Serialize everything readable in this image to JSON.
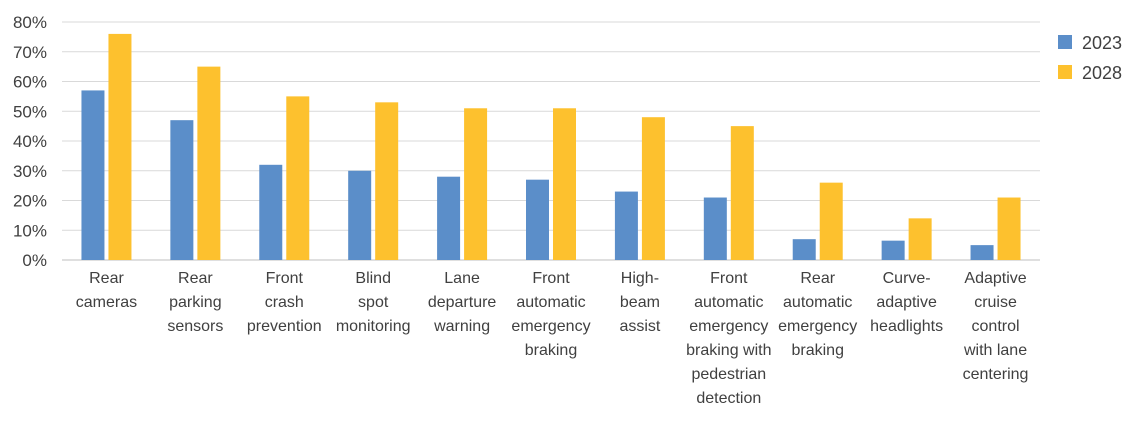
{
  "chart_data": {
    "type": "bar",
    "categories": [
      [
        "Rear",
        "cameras"
      ],
      [
        "Rear",
        "parking",
        "sensors"
      ],
      [
        "Front",
        "crash",
        "prevention"
      ],
      [
        "Blind",
        "spot",
        "monitoring"
      ],
      [
        "Lane",
        "departure",
        "warning"
      ],
      [
        "Front",
        "automatic",
        "emergency",
        "braking"
      ],
      [
        "High-",
        "beam",
        "assist"
      ],
      [
        "Front",
        "automatic",
        "emergency",
        "braking with",
        "pedestrian",
        "detection"
      ],
      [
        "Rear",
        "automatic",
        "emergency",
        "braking"
      ],
      [
        "Curve-",
        "adaptive",
        "headlights"
      ],
      [
        "Adaptive",
        "cruise",
        "control",
        "with lane",
        "centering"
      ]
    ],
    "series": [
      {
        "name": "2023",
        "color": "#5b8ec9",
        "values": [
          57,
          47,
          32,
          30,
          28,
          27,
          23,
          21,
          7,
          6.5,
          5
        ]
      },
      {
        "name": "2028",
        "color": "#fdc12e",
        "values": [
          76,
          65,
          55,
          53,
          51,
          51,
          48,
          45,
          26,
          14,
          21
        ]
      }
    ],
    "yticks": [
      "0%",
      "10%",
      "20%",
      "30%",
      "40%",
      "50%",
      "60%",
      "70%",
      "80%"
    ],
    "ylim": [
      0,
      80
    ],
    "grid": true,
    "legend_position": "right",
    "gridline_color": "#d9d9d9",
    "axis_color": "#bfbfbf",
    "text_color": "#404040"
  }
}
